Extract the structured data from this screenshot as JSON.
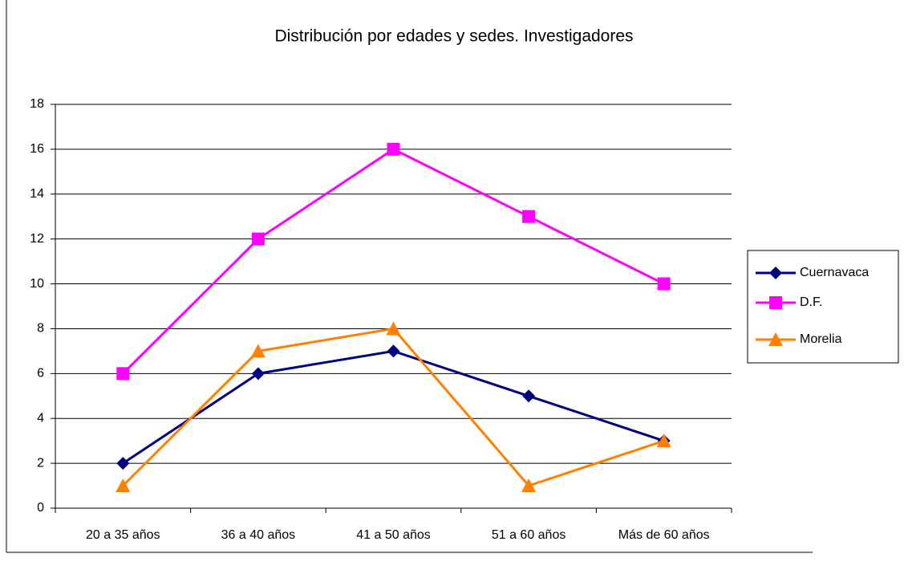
{
  "chart_data": {
    "type": "line",
    "title": "Distribución por edades y sedes. Investigadores",
    "categories": [
      "20 a 35 años",
      "36 a 40 años",
      "41 a 50 años",
      "51 a 60 años",
      "Más de 60 años"
    ],
    "series": [
      {
        "name": "Cuernavaca",
        "color": "#000080",
        "marker": "diamond",
        "values": [
          2,
          6,
          7,
          5,
          3
        ]
      },
      {
        "name": "D.F.",
        "color": "#ff00ff",
        "marker": "square",
        "values": [
          6,
          12,
          16,
          13,
          10
        ]
      },
      {
        "name": "Morelia",
        "color": "#ff8000",
        "marker": "triangle",
        "values": [
          1,
          7,
          8,
          1,
          3
        ]
      }
    ],
    "ylim": [
      0,
      18
    ],
    "yticks": [
      0,
      2,
      4,
      6,
      8,
      10,
      12,
      14,
      16,
      18
    ],
    "grid": true,
    "legend": "right"
  }
}
